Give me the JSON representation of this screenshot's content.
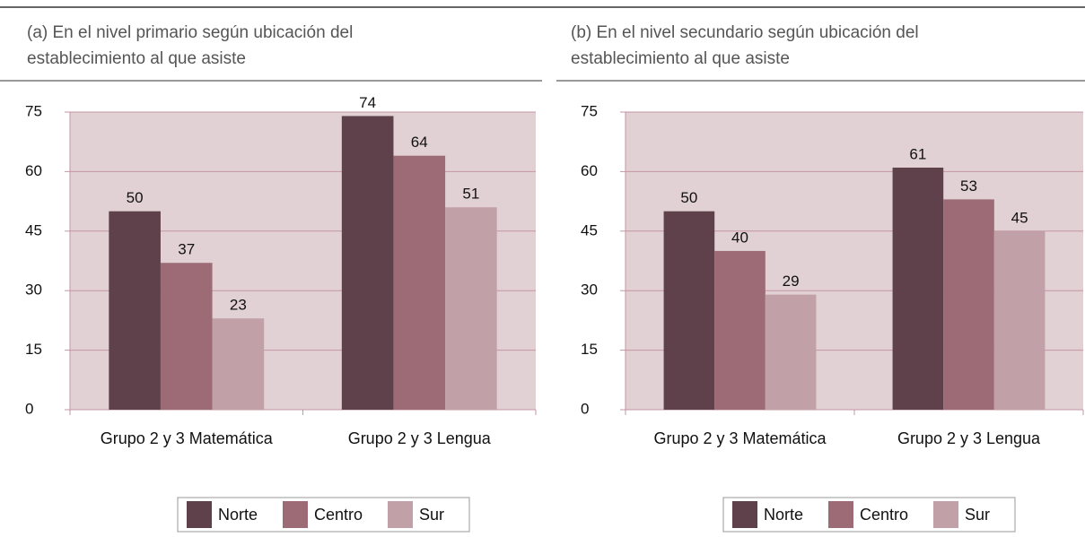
{
  "chart_data": [
    {
      "type": "bar",
      "title": "(a) En el nivel primario según ubicación del establecimiento al que asiste",
      "categories": [
        "Grupo 2 y 3 Matemática",
        "Grupo 2 y 3 Lengua"
      ],
      "series": [
        {
          "name": "Norte",
          "color": "#5e414b",
          "values": [
            50,
            74
          ]
        },
        {
          "name": "Centro",
          "color": "#9c6b76",
          "values": [
            37,
            64
          ]
        },
        {
          "name": "Sur",
          "color": "#c2a0a7",
          "values": [
            23,
            51
          ]
        }
      ],
      "ylim": [
        0,
        75
      ],
      "yticks": [
        0,
        15,
        30,
        45,
        60,
        75
      ],
      "grid": true,
      "legend": "bottom"
    },
    {
      "type": "bar",
      "title": "(b) En el nivel secundario según ubicación del establecimiento al que asiste",
      "categories": [
        "Grupo 2 y 3 Matemática",
        "Grupo 2 y 3 Lengua"
      ],
      "series": [
        {
          "name": "Norte",
          "color": "#5e414b",
          "values": [
            50,
            61
          ]
        },
        {
          "name": "Centro",
          "color": "#9c6b76",
          "values": [
            40,
            53
          ]
        },
        {
          "name": "Sur",
          "color": "#c2a0a7",
          "values": [
            29,
            45
          ]
        }
      ],
      "ylim": [
        0,
        75
      ],
      "yticks": [
        0,
        15,
        30,
        45,
        60,
        75
      ],
      "grid": true,
      "legend": "bottom"
    }
  ]
}
